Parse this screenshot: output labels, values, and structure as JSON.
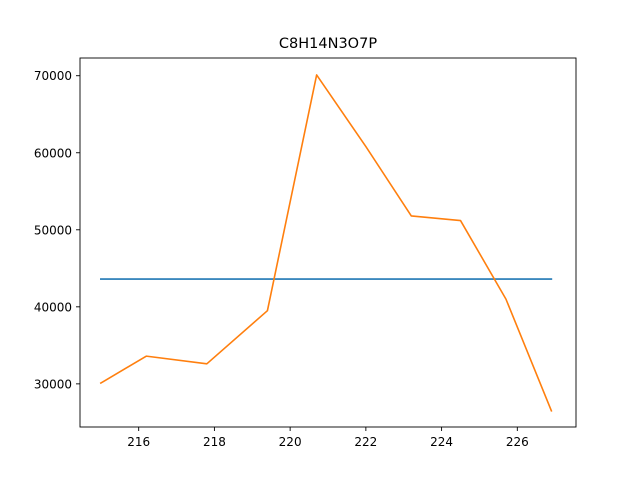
{
  "chart_data": {
    "type": "line",
    "title": "C8H14N3O7P",
    "xlabel": "",
    "ylabel": "",
    "xlim": [
      214.45,
      227.55
    ],
    "ylim": [
      24400,
      72300
    ],
    "x_ticks": [
      216,
      218,
      220,
      222,
      224,
      226
    ],
    "y_ticks": [
      30000,
      40000,
      50000,
      60000,
      70000
    ],
    "grid": false,
    "legend": "none",
    "series": [
      {
        "color": "#1f77b4",
        "x": [
          215.0,
          226.9
        ],
        "y": [
          43600,
          43600
        ]
      },
      {
        "color": "#ff7f0e",
        "x": [
          215.0,
          216.2,
          217.8,
          219.4,
          220.7,
          222.0,
          223.2,
          224.5,
          225.7,
          226.9
        ],
        "y": [
          30100,
          33600,
          32600,
          39500,
          70100,
          60800,
          51800,
          51200,
          41000,
          26500
        ]
      }
    ]
  }
}
